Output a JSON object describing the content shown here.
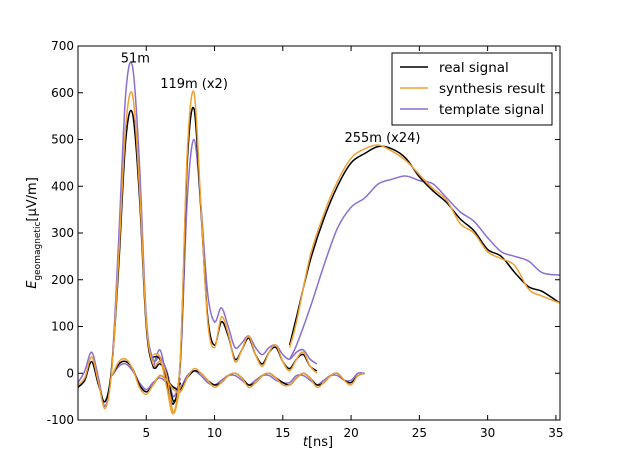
{
  "chart_data": {
    "type": "line",
    "title": "",
    "xlabel": "t[ns]",
    "xlabel_main": "t",
    "xlabel_unit": "[ns]",
    "ylabel": "E_geomagnetic[μV/m]",
    "ylabel_main": "E",
    "ylabel_sub": "geomagnetic",
    "ylabel_unit": "[μV/m]",
    "xlim": [
      0,
      35.3
    ],
    "ylim": [
      -100,
      700
    ],
    "xticks": [
      5,
      10,
      15,
      20,
      25,
      30,
      35
    ],
    "yticks": [
      -100,
      0,
      100,
      200,
      300,
      400,
      500,
      600,
      700
    ],
    "grid": false,
    "legend_position": "top-right",
    "annotations": [
      {
        "text": "51m",
        "x": 4.2,
        "y": 665
      },
      {
        "text": "119m (x2)",
        "x": 8.5,
        "y": 610
      },
      {
        "text": "255m (x24)",
        "x": 22.3,
        "y": 495
      }
    ],
    "series": [
      {
        "name": "real signal",
        "color": "#000000",
        "segments": [
          {
            "x": [
              0,
              0.5,
              1,
              1.5,
              2,
              2.5,
              3,
              3.5,
              4,
              4.5,
              5,
              5.5,
              6,
              6.5,
              7,
              7.5
            ],
            "y": [
              -30,
              -15,
              25,
              -25,
              -60,
              20,
              240,
              500,
              555,
              380,
              100,
              15,
              20,
              0,
              -60,
              -20
            ]
          },
          {
            "x": [
              5.5,
              6,
              6.5,
              7,
              7.5,
              8,
              8.5,
              9,
              9.5,
              10,
              10.5,
              11,
              11.5,
              12,
              12.5,
              13,
              13.5,
              14,
              14.5,
              15,
              15.5,
              16,
              16.5,
              17,
              17.5
            ],
            "y": [
              35,
              30,
              -20,
              -65,
              30,
              450,
              565,
              350,
              120,
              60,
              110,
              80,
              30,
              50,
              75,
              40,
              20,
              45,
              55,
              25,
              10,
              30,
              40,
              15,
              5
            ]
          },
          {
            "x": [
              2.5,
              3,
              3.5,
              4,
              4.5,
              5,
              5.5,
              6,
              6.5,
              7,
              7.5,
              8,
              8.5,
              9,
              9.5,
              10,
              10.5,
              11,
              11.5,
              12,
              12.5,
              13,
              13.5,
              14,
              14.5,
              15,
              15.5,
              16,
              16.5,
              17,
              17.5,
              18,
              18.5,
              19,
              19.5,
              20,
              20.5,
              21
            ],
            "y": [
              -5,
              20,
              25,
              10,
              -25,
              -40,
              -25,
              -5,
              -15,
              -30,
              -35,
              -10,
              5,
              0,
              -15,
              -25,
              -20,
              -5,
              0,
              -10,
              -25,
              -20,
              -5,
              0,
              -10,
              -20,
              -25,
              -10,
              0,
              -10,
              -25,
              -20,
              -5,
              0,
              -15,
              -20,
              -5,
              0
            ]
          },
          {
            "x": [
              15.5,
              16,
              17,
              18,
              19,
              20,
              21,
              22,
              23,
              24,
              25,
              26,
              27,
              28,
              29,
              30,
              31,
              32,
              33,
              34,
              35.3
            ],
            "y": [
              60,
              120,
              240,
              330,
              400,
              450,
              470,
              485,
              480,
              460,
              420,
              390,
              365,
              330,
              305,
              265,
              250,
              215,
              185,
              175,
              150
            ]
          }
        ]
      },
      {
        "name": "synthesis result",
        "color": "#f0a030",
        "segments": [
          {
            "x": [
              0,
              0.5,
              1,
              1.5,
              2,
              2.5,
              3,
              3.5,
              4,
              4.5,
              5,
              5.5,
              6,
              6.5,
              7,
              7.5
            ],
            "y": [
              -25,
              -10,
              35,
              -20,
              -75,
              15,
              260,
              530,
              595,
              400,
              110,
              20,
              25,
              -5,
              -85,
              -25
            ]
          },
          {
            "x": [
              5.5,
              6,
              6.5,
              7,
              7.5,
              8,
              8.5,
              9,
              9.5,
              10,
              10.5,
              11,
              11.5,
              12,
              12.5,
              13,
              13.5,
              14,
              14.5,
              15,
              15.5,
              16,
              16.5,
              17,
              17.5
            ],
            "y": [
              40,
              35,
              -30,
              -85,
              35,
              470,
              600,
              360,
              110,
              55,
              120,
              85,
              25,
              50,
              80,
              40,
              15,
              45,
              60,
              25,
              5,
              30,
              45,
              15,
              0
            ]
          },
          {
            "x": [
              2.5,
              3,
              3.5,
              4,
              4.5,
              5,
              5.5,
              6,
              6.5,
              7,
              7.5,
              8,
              8.5,
              9,
              9.5,
              10,
              10.5,
              11,
              11.5,
              12,
              12.5,
              13,
              13.5,
              14,
              14.5,
              15,
              15.5,
              16,
              16.5,
              17,
              17.5,
              18,
              18.5,
              19,
              19.5,
              20,
              20.5,
              21
            ],
            "y": [
              -5,
              25,
              30,
              10,
              -30,
              -45,
              -25,
              -5,
              -15,
              -35,
              -40,
              -10,
              10,
              0,
              -15,
              -30,
              -20,
              -5,
              0,
              -10,
              -30,
              -20,
              -5,
              0,
              -10,
              -25,
              -25,
              -10,
              0,
              -10,
              -30,
              -20,
              -5,
              0,
              -15,
              -25,
              -5,
              0
            ]
          },
          {
            "x": [
              15.5,
              16,
              17,
              18,
              19,
              20,
              21,
              22,
              23,
              24,
              25,
              26,
              27,
              28,
              29,
              30,
              31,
              32,
              33,
              34,
              35.3
            ],
            "y": [
              55,
              110,
              250,
              340,
              410,
              460,
              480,
              488,
              475,
              455,
              425,
              395,
              370,
              320,
              300,
              260,
              245,
              230,
              180,
              165,
              150
            ]
          }
        ]
      },
      {
        "name": "template signal",
        "color": "#8a6fd0",
        "segments": [
          {
            "x": [
              0,
              0.5,
              1,
              1.5,
              2,
              2.5,
              3,
              3.5,
              4,
              4.5,
              5,
              5.5,
              6,
              6.5,
              7,
              7.5
            ],
            "y": [
              -20,
              5,
              45,
              -10,
              -70,
              25,
              300,
              600,
              655,
              450,
              120,
              30,
              35,
              5,
              -50,
              -10
            ]
          },
          {
            "x": [
              5.5,
              6,
              6.5,
              7,
              7.5,
              8,
              8.5,
              9,
              9.5,
              10,
              10.5,
              11,
              11.5,
              12,
              12.5,
              13,
              13.5,
              14,
              14.5,
              15,
              15.5,
              16,
              16.5,
              17,
              17.5
            ],
            "y": [
              10,
              50,
              -10,
              -50,
              20,
              370,
              500,
              360,
              170,
              110,
              140,
              100,
              55,
              65,
              80,
              55,
              40,
              55,
              60,
              40,
              30,
              45,
              50,
              30,
              20
            ]
          },
          {
            "x": [
              2.5,
              3,
              3.5,
              4,
              4.5,
              5,
              5.5,
              6,
              6.5,
              7,
              7.5,
              8,
              8.5,
              9,
              9.5,
              10,
              10.5,
              11,
              11.5,
              12,
              12.5,
              13,
              13.5,
              14,
              14.5,
              15,
              15.5,
              16,
              16.5,
              17,
              17.5,
              18,
              18.5,
              19,
              19.5,
              20,
              20.5,
              21
            ],
            "y": [
              -5,
              15,
              20,
              5,
              -20,
              -35,
              -20,
              -10,
              -20,
              -30,
              -30,
              -5,
              5,
              -5,
              -20,
              -25,
              -15,
              -5,
              -5,
              -15,
              -25,
              -15,
              -5,
              -5,
              -15,
              -20,
              -20,
              -5,
              -5,
              -15,
              -25,
              -15,
              -5,
              -5,
              -15,
              -15,
              0,
              0
            ]
          },
          {
            "x": [
              15.5,
              16,
              17,
              18,
              19,
              20,
              21,
              22,
              23,
              24,
              25,
              26,
              27,
              28,
              29,
              30,
              31,
              32,
              33,
              34,
              35.3
            ],
            "y": [
              30,
              60,
              140,
              230,
              310,
              355,
              375,
              405,
              415,
              422,
              412,
              405,
              375,
              345,
              325,
              290,
              260,
              250,
              240,
              215,
              210
            ]
          }
        ]
      }
    ]
  }
}
